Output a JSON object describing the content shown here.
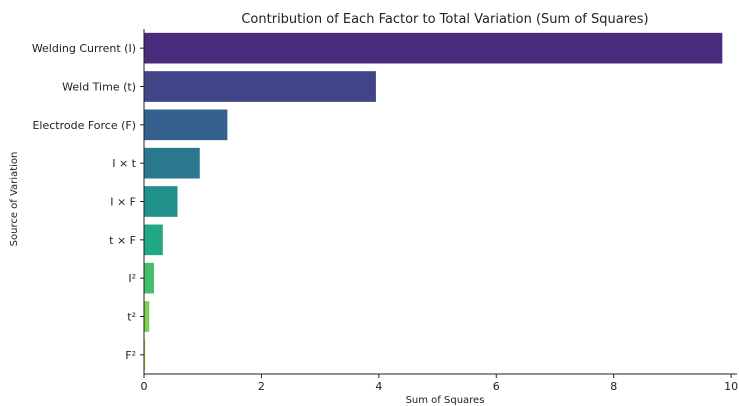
{
  "chart_data": {
    "type": "bar",
    "orientation": "horizontal",
    "title": "Contribution of Each Factor to Total Variation (Sum of Squares)",
    "xlabel": "Sum of Squares",
    "ylabel": "Source of Variation",
    "xlim": [
      0,
      10.1
    ],
    "xticks": [
      0,
      2,
      4,
      6,
      8,
      10
    ],
    "grid": false,
    "categories": [
      "Welding Current (I)",
      "Weld Time (t)",
      "Electrode Force (F)",
      "I × t",
      "I × F",
      "t × F",
      "I²",
      "t²",
      "F²"
    ],
    "values": [
      9.85,
      3.95,
      1.42,
      0.95,
      0.57,
      0.32,
      0.17,
      0.09,
      0.02
    ],
    "colors": [
      "#472d7b",
      "#414487",
      "#35608d",
      "#2a788e",
      "#21918c",
      "#22a884",
      "#44bf70",
      "#7ad151",
      "#bddf26"
    ]
  }
}
